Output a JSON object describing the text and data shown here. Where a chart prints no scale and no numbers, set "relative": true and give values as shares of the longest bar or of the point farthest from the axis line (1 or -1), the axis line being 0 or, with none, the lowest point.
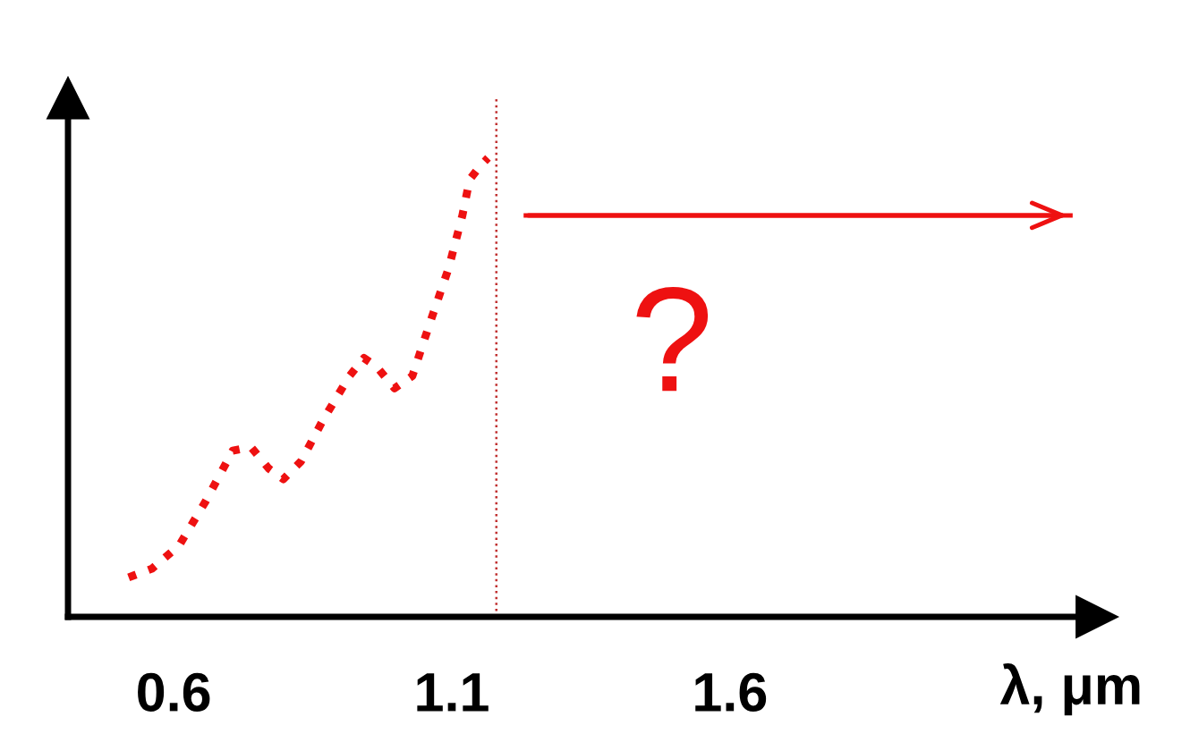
{
  "chart_data": {
    "type": "line",
    "relative": true,
    "xlabel": "λ, μm",
    "xlim": [
      0.41,
      2.25
    ],
    "xticks": [
      0.6,
      1.1,
      1.6
    ],
    "series": [
      {
        "color": "#ee1111",
        "line_style": "dotted",
        "x": [
          0.519,
          0.561,
          0.61,
          0.658,
          0.706,
          0.739,
          0.771,
          0.797,
          0.829,
          0.868,
          0.916,
          0.942,
          0.965,
          0.997,
          1.029,
          1.061,
          1.094,
          1.119,
          1.132,
          1.152,
          1.165
        ],
        "values": [
          0.086,
          0.105,
          0.156,
          0.253,
          0.362,
          0.37,
          0.323,
          0.3,
          0.339,
          0.428,
          0.525,
          0.564,
          0.545,
          0.498,
          0.525,
          0.642,
          0.759,
          0.875,
          0.953,
          0.984,
          1.0
        ]
      },
      {
        "color": "#ee1111",
        "line_style": "solid",
        "x": [
          1.229,
          2.216
        ],
        "values": [
          0.875,
          0.875
        ]
      }
    ],
    "ref_lines": [
      {
        "axis": "x",
        "value": 1.18,
        "color": "#c03030",
        "line_style": "dotted"
      }
    ],
    "annotations": [
      "?"
    ],
    "grid": false,
    "legend": false
  }
}
